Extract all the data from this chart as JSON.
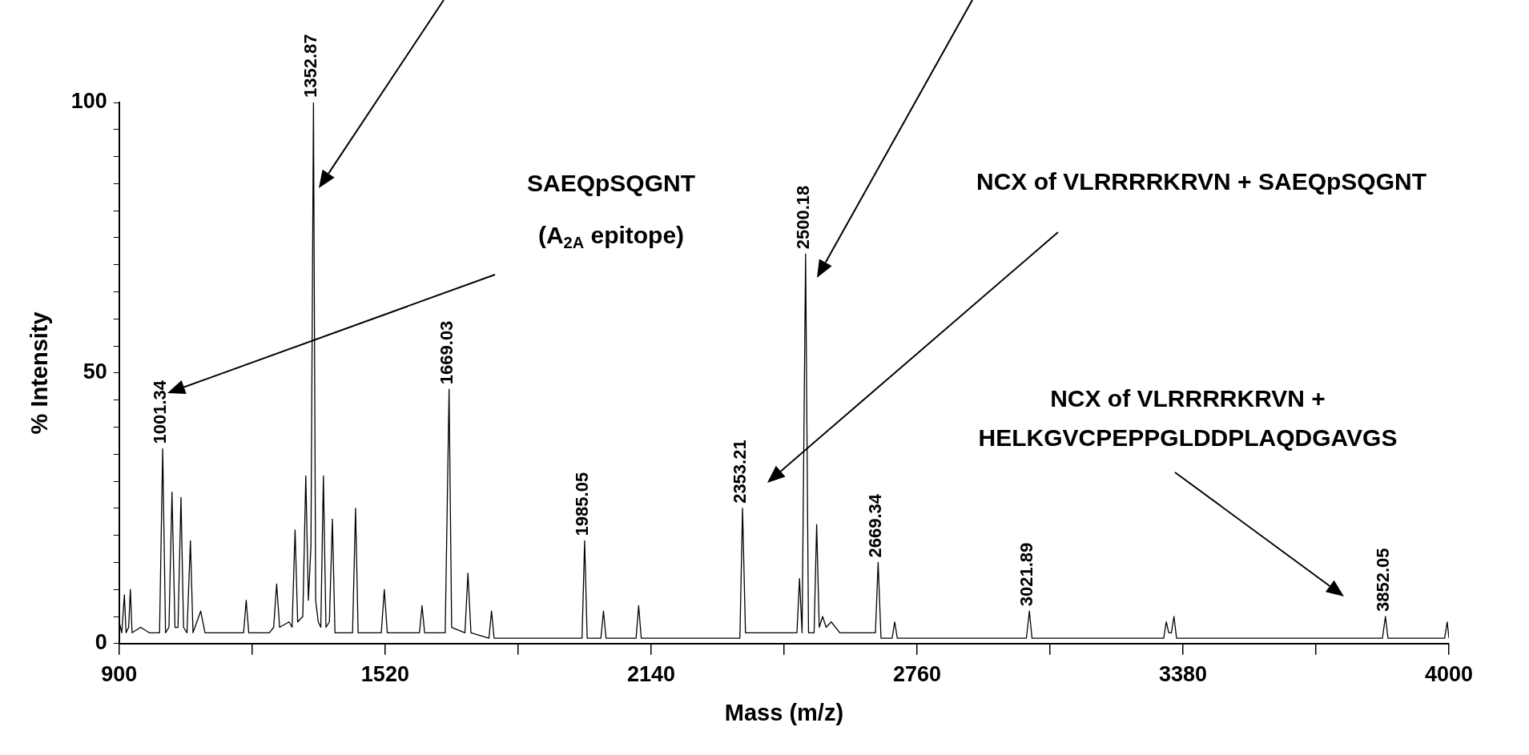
{
  "chart_data": {
    "type": "line",
    "xlabel": "Mass (m/z)",
    "ylabel": "% Intensity",
    "x": [
      900,
      906,
      912,
      916,
      922,
      926,
      930,
      950,
      970,
      994,
      1001.34,
      1008,
      1016,
      1023,
      1030,
      1037,
      1044,
      1050,
      1058,
      1066,
      1072,
      1090,
      1100,
      1140,
      1190,
      1196,
      1202,
      1250,
      1260,
      1267,
      1274,
      1296,
      1303,
      1310,
      1316,
      1328,
      1335,
      1341,
      1347,
      1352.87,
      1358,
      1364,
      1370,
      1376,
      1382,
      1390,
      1397,
      1403,
      1444,
      1451,
      1457,
      1511,
      1518,
      1525,
      1600,
      1606,
      1612,
      1660,
      1669.03,
      1675,
      1706,
      1713,
      1720,
      1762,
      1768,
      1774,
      1900,
      1979,
      1985.05,
      1991,
      2023,
      2029,
      2035,
      2105,
      2111,
      2117,
      2300,
      2347,
      2353.21,
      2360,
      2420,
      2480,
      2486,
      2492,
      2500.18,
      2507,
      2520,
      2526,
      2532,
      2540,
      2548,
      2560,
      2580,
      2663,
      2669.34,
      2676,
      2702,
      2708,
      2714,
      2900,
      3015,
      3021.89,
      3028,
      3335,
      3341,
      3347,
      3353,
      3359,
      3365,
      3845,
      3852.05,
      3858,
      3990,
      3996,
      4000
    ],
    "series": [
      {
        "color": "#000000",
        "values": [
          4,
          2,
          9,
          2,
          3,
          10,
          2,
          3,
          2,
          2,
          36,
          2,
          3,
          28,
          3,
          3,
          27,
          3,
          2,
          19,
          2,
          6,
          2,
          2,
          2,
          8,
          2,
          2,
          3,
          11,
          3,
          4,
          3,
          21,
          4,
          5,
          31,
          8,
          18,
          100,
          8,
          4,
          3,
          31,
          3,
          4,
          23,
          2,
          2,
          25,
          2,
          2,
          10,
          2,
          2,
          7,
          2,
          2,
          47,
          3,
          2,
          13,
          2,
          1,
          6,
          1,
          1,
          1,
          19,
          1,
          1,
          6,
          1,
          1,
          7,
          1,
          1,
          1,
          25,
          2,
          2,
          2,
          12,
          2,
          72,
          2,
          2,
          22,
          3,
          5,
          3,
          4,
          2,
          2,
          15,
          1,
          1,
          4,
          1,
          1,
          1,
          6,
          1,
          1,
          4,
          2,
          2,
          5,
          1,
          1,
          5,
          1,
          1,
          4,
          1
        ]
      }
    ],
    "xlim": [
      900,
      4000
    ],
    "xticks": [
      900,
      {
        "value": 1210,
        "label": null
      },
      1520,
      {
        "value": 1830,
        "label": null
      },
      2140,
      {
        "value": 2450,
        "label": null
      },
      2760,
      {
        "value": 3070,
        "label": null
      },
      3380,
      {
        "value": 3690,
        "label": null
      },
      4000
    ],
    "ylim": [
      0,
      100
    ],
    "yticks": [
      0,
      {
        "value": 5,
        "label": null
      },
      {
        "value": 10,
        "label": null
      },
      {
        "value": 15,
        "label": null
      },
      {
        "value": 20,
        "label": null
      },
      {
        "value": 25,
        "label": null
      },
      {
        "value": 30,
        "label": null
      },
      {
        "value": 35,
        "label": null
      },
      {
        "value": 40,
        "label": null
      },
      {
        "value": 45,
        "label": null
      },
      50,
      {
        "value": 55,
        "label": null
      },
      {
        "value": 60,
        "label": null
      },
      {
        "value": 65,
        "label": null
      },
      {
        "value": 70,
        "label": null
      },
      {
        "value": 75,
        "label": null
      },
      {
        "value": 80,
        "label": null
      },
      {
        "value": 85,
        "label": null
      },
      {
        "value": 90,
        "label": null
      },
      {
        "value": 95,
        "label": null
      },
      100
    ],
    "grid": false,
    "legend": false,
    "marker": "none",
    "line_style": "solid",
    "annotations": [
      "SAEQpSQGNT\n(A$_{2A}$ epitope)",
      "NCX of VLRRRRKRVN + SAEQpSQGNT",
      "NCX of VLRRRRKRVN +\nHELKGVCPEPPGLDDPLAQDGAVGS",
      {
        "text": "1001.34",
        "x": 1001.34,
        "y": 36
      },
      {
        "text": "1352.87",
        "x": 1352.87,
        "y": 100
      },
      {
        "text": "1669.03",
        "x": 1669.03,
        "y": 47
      },
      {
        "text": "1985.05",
        "x": 1985.05,
        "y": 19
      },
      {
        "text": "2353.21",
        "x": 2353.21,
        "y": 25
      },
      {
        "text": "2500.18",
        "x": 2500.18,
        "y": 72
      },
      {
        "text": "2669.34",
        "x": 2669.34,
        "y": 15
      },
      {
        "text": "3021.89",
        "x": 3021.89,
        "y": 6
      },
      {
        "text": "3852.05",
        "x": 3852.05,
        "y": 5
      }
    ]
  }
}
